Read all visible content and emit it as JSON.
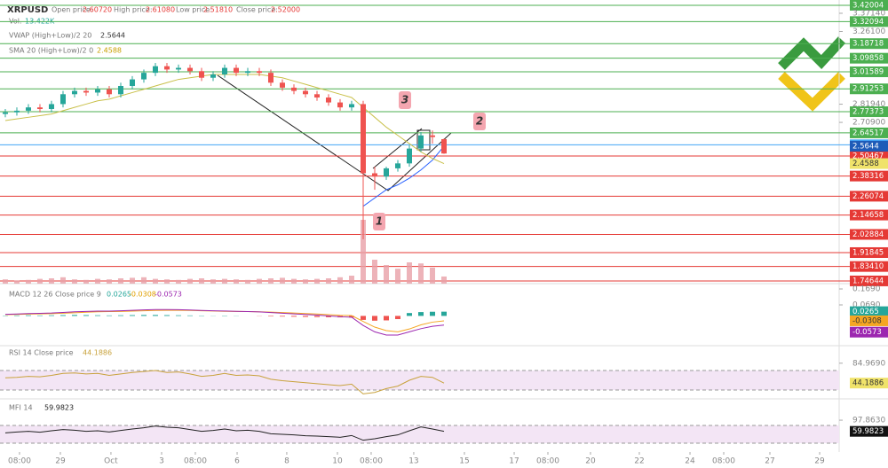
{
  "chart_data": [
    {
      "type": "candlestick",
      "title": "XRPUSD",
      "ohlc_labels": [
        "Open price:",
        "High price:",
        "Low price:",
        "Close price:"
      ],
      "ohlc_values": [
        "2.60720",
        "2.61080",
        "2.51810",
        "2.52000"
      ],
      "volume_title": "Vol.",
      "volume_label": "13.422K",
      "x": [
        0,
        1,
        2,
        3,
        4,
        5,
        6,
        7,
        8,
        9,
        10,
        11,
        12,
        13,
        14,
        15,
        16,
        17,
        18,
        19,
        20,
        21,
        22,
        23,
        24,
        25,
        26,
        27,
        28,
        29,
        30,
        31,
        32,
        33,
        34,
        35,
        36,
        37,
        38
      ],
      "xlim": [
        -0.46,
        72.23
      ],
      "xticks": [
        {
          "value": 1.23,
          "label": "08:00"
        },
        {
          "value": 4.77,
          "label": "29"
        },
        {
          "value": 9.15,
          "label": "Oct"
        },
        {
          "value": 13.54,
          "label": "3"
        },
        {
          "value": 16.46,
          "label": "08:00"
        },
        {
          "value": 20.08,
          "label": "6"
        },
        {
          "value": 24.38,
          "label": "8"
        },
        {
          "value": 28.77,
          "label": "10"
        },
        {
          "value": 31.69,
          "label": "08:00"
        },
        {
          "value": 35.38,
          "label": "13"
        },
        {
          "value": 39.77,
          "label": "15"
        },
        {
          "value": 44.08,
          "label": "17"
        },
        {
          "value": 47,
          "label": "08:00"
        },
        {
          "value": 50.69,
          "label": "20"
        },
        {
          "value": 54.92,
          "label": "22"
        },
        {
          "value": 59.31,
          "label": "24"
        },
        {
          "value": 62.23,
          "label": "08:00"
        },
        {
          "value": 66.23,
          "label": "27"
        },
        {
          "value": 70.54,
          "label": "29"
        }
      ],
      "ylim": [
        1.73,
        3.452
      ],
      "yticks": [
        {
          "value": 3.3714,
          "label": "3.37140"
        },
        {
          "value": 3.261,
          "label": "3.26100"
        },
        {
          "value": 2.8194,
          "label": "2.81940"
        },
        {
          "value": 2.709,
          "label": "2.70900"
        }
      ],
      "open": [
        2.76,
        2.77,
        2.78,
        2.8,
        2.79,
        2.82,
        2.88,
        2.9,
        2.89,
        2.91,
        2.88,
        2.93,
        2.97,
        3.01,
        3.05,
        3.03,
        3.04,
        3.02,
        2.98,
        3.0,
        3.04,
        3.01,
        3.02,
        3.01,
        2.95,
        2.92,
        2.9,
        2.88,
        2.86,
        2.83,
        2.8,
        2.82,
        2.4,
        2.38,
        2.43,
        2.46,
        2.55,
        2.63,
        2.6072
      ],
      "high": [
        2.79,
        2.8,
        2.82,
        2.82,
        2.84,
        2.9,
        2.92,
        2.92,
        2.93,
        2.93,
        2.95,
        2.99,
        3.03,
        3.07,
        3.07,
        3.06,
        3.06,
        3.04,
        3.02,
        3.06,
        3.06,
        3.04,
        3.04,
        3.03,
        2.97,
        2.94,
        2.92,
        2.9,
        2.88,
        2.85,
        2.84,
        2.84,
        2.44,
        2.44,
        2.48,
        2.57,
        2.65,
        2.66,
        2.6108
      ],
      "low": [
        2.74,
        2.75,
        2.76,
        2.77,
        2.77,
        2.8,
        2.86,
        2.87,
        2.87,
        2.86,
        2.86,
        2.91,
        2.95,
        2.99,
        3.01,
        3.01,
        3.0,
        2.96,
        2.96,
        2.98,
        2.99,
        2.99,
        2.99,
        2.93,
        2.9,
        2.88,
        2.86,
        2.84,
        2.81,
        2.78,
        2.78,
        2.0,
        2.3,
        2.36,
        2.41,
        2.44,
        2.53,
        2.58,
        2.5181
      ],
      "close": [
        2.77,
        2.78,
        2.8,
        2.79,
        2.82,
        2.88,
        2.9,
        2.89,
        2.91,
        2.88,
        2.93,
        2.97,
        3.01,
        3.05,
        3.03,
        3.04,
        3.02,
        2.98,
        3.0,
        3.04,
        3.01,
        3.02,
        3.01,
        2.95,
        2.92,
        2.9,
        2.88,
        2.86,
        2.83,
        2.8,
        2.82,
        2.4,
        2.38,
        2.43,
        2.46,
        2.55,
        2.63,
        2.62,
        2.52
      ],
      "up_color": "#26a69a",
      "down_color": "#ef5350",
      "volume": {
        "values": [
          8,
          6,
          7,
          9,
          10,
          12,
          8,
          7,
          9,
          8,
          10,
          11,
          12,
          9,
          8,
          7,
          9,
          10,
          8,
          9,
          8,
          7,
          9,
          10,
          11,
          9,
          8,
          9,
          10,
          12,
          15,
          120,
          45,
          35,
          28,
          40,
          38,
          30,
          13.422
        ],
        "ylim": [
          0,
          150
        ],
        "color": "#e8a0a8"
      },
      "series": [
        {
          "name": "VWAP (High+Low)/2 20",
          "color": "#2962ff",
          "values": [
            null,
            null,
            null,
            null,
            null,
            null,
            null,
            null,
            null,
            null,
            null,
            null,
            null,
            null,
            null,
            null,
            null,
            null,
            null,
            null,
            null,
            null,
            null,
            null,
            null,
            null,
            null,
            null,
            null,
            null,
            null,
            2.2,
            2.25,
            2.3,
            2.33,
            2.37,
            2.42,
            2.48,
            2.5644
          ]
        },
        {
          "name": "SMA 20 (High+Low)/2 0",
          "color": "#c9c04a",
          "values": [
            2.72,
            2.73,
            2.74,
            2.75,
            2.76,
            2.78,
            2.8,
            2.82,
            2.84,
            2.85,
            2.87,
            2.89,
            2.91,
            2.93,
            2.95,
            2.97,
            2.98,
            2.99,
            3.0,
            3.0,
            3.0,
            3.0,
            3.0,
            2.99,
            2.98,
            2.96,
            2.94,
            2.92,
            2.9,
            2.88,
            2.86,
            2.8,
            2.74,
            2.68,
            2.63,
            2.58,
            2.53,
            2.49,
            2.4588
          ]
        }
      ],
      "levels": [
        {
          "value": 3.42004,
          "color": "#4caf50"
        },
        {
          "value": 3.32094,
          "color": "#4caf50"
        },
        {
          "value": 3.18718,
          "color": "#4caf50"
        },
        {
          "value": 3.09858,
          "color": "#4caf50"
        },
        {
          "value": 3.01589,
          "color": "#4caf50"
        },
        {
          "value": 2.91253,
          "color": "#4caf50"
        },
        {
          "value": 2.77373,
          "color": "#4caf50"
        },
        {
          "value": 2.64517,
          "color": "#4caf50"
        },
        {
          "value": 2.57315,
          "color": "#42a5f5"
        },
        {
          "value": 2.50467,
          "color": "#e53935"
        },
        {
          "value": 2.38316,
          "color": "#e53935"
        },
        {
          "value": 2.26074,
          "color": "#e53935"
        },
        {
          "value": 2.14658,
          "color": "#e53935"
        },
        {
          "value": 2.02884,
          "color": "#e53935"
        },
        {
          "value": 1.91845,
          "color": "#e53935"
        },
        {
          "value": 1.8341,
          "label": "1.83410",
          "color": "#e53935"
        },
        {
          "value": 1.74644,
          "color": "#e53935"
        }
      ],
      "annotations": [
        "1",
        "2",
        "3"
      ]
    },
    {
      "type": "macd",
      "title": "MACD 12 26 Close price 9",
      "ylim": [
        -0.1866,
        0.2023
      ],
      "yticks": [
        {
          "value": 0.169,
          "label": "0.1690"
        },
        {
          "value": 0.069,
          "label": "0.0690"
        }
      ],
      "series": [
        {
          "name": "histogram",
          "color": "#26a69a",
          "values": [
            0.002,
            0.003,
            0.004,
            0.003,
            0.004,
            0.005,
            0.006,
            0.005,
            0.004,
            0.003,
            0.004,
            0.005,
            0.006,
            0.006,
            0.005,
            0.004,
            0.003,
            0.002,
            0.001,
            0.002,
            0.001,
            0,
            -0.001,
            -0.003,
            -0.004,
            -0.005,
            -0.006,
            -0.007,
            -0.008,
            -0.009,
            -0.01,
            -0.025,
            -0.03,
            -0.028,
            -0.02,
            0.018,
            0.024,
            0.026,
            0.0265
          ]
        },
        {
          "name": "signal",
          "color": "#f5a623",
          "values": [
            0.008,
            0.009,
            0.011,
            0.013,
            0.014,
            0.017,
            0.02,
            0.023,
            0.026,
            0.027,
            0.028,
            0.03,
            0.032,
            0.034,
            0.035,
            0.035,
            0.034,
            0.032,
            0.031,
            0.029,
            0.028,
            0.027,
            0.026,
            0.024,
            0.021,
            0.018,
            0.015,
            0.012,
            0.008,
            0.004,
            0.002,
            -0.035,
            -0.07,
            -0.092,
            -0.1,
            -0.082,
            -0.056,
            -0.039,
            -0.0308
          ]
        },
        {
          "name": "macd",
          "color": "#9c27b0",
          "values": [
            0.01,
            0.012,
            0.015,
            0.016,
            0.018,
            0.022,
            0.026,
            0.028,
            0.03,
            0.03,
            0.032,
            0.035,
            0.038,
            0.04,
            0.04,
            0.039,
            0.037,
            0.034,
            0.032,
            0.031,
            0.029,
            0.027,
            0.025,
            0.021,
            0.017,
            0.013,
            0.009,
            0.005,
            0,
            -0.005,
            -0.008,
            -0.06,
            -0.1,
            -0.12,
            -0.12,
            -0.1,
            -0.08,
            -0.065,
            -0.0573
          ]
        }
      ]
    },
    {
      "type": "line",
      "title": "RSI 14 Close price",
      "ylim": [
        11.8,
        120.9
      ],
      "yticks": [
        {
          "value": 84.969,
          "label": "84.9690"
        }
      ],
      "bands": [
        30,
        70
      ],
      "color": "#c8a23c",
      "label_color": "#f0e36a",
      "values": [
        55,
        56,
        58,
        57,
        60,
        64,
        65,
        63,
        64,
        60,
        63,
        66,
        68,
        70,
        66,
        67,
        63,
        58,
        60,
        64,
        60,
        61,
        59,
        52,
        49,
        47,
        45,
        43,
        41,
        39,
        42,
        22,
        25,
        33,
        38,
        50,
        58,
        56,
        44.1886
      ]
    },
    {
      "type": "line",
      "title": "MFI 14",
      "ylim": [
        -10,
        170
      ],
      "yticks": [
        {
          "value": 97.863,
          "label": "97.8630"
        }
      ],
      "bands": [
        20,
        80
      ],
      "color": "#222222",
      "label_color": "#111111",
      "values": [
        55,
        58,
        60,
        57,
        62,
        66,
        64,
        60,
        62,
        58,
        63,
        68,
        72,
        78,
        74,
        72,
        66,
        60,
        63,
        68,
        62,
        64,
        60,
        52,
        50,
        48,
        45,
        44,
        42,
        40,
        46,
        30,
        35,
        42,
        48,
        62,
        75,
        68,
        59.9823
      ]
    }
  ]
}
